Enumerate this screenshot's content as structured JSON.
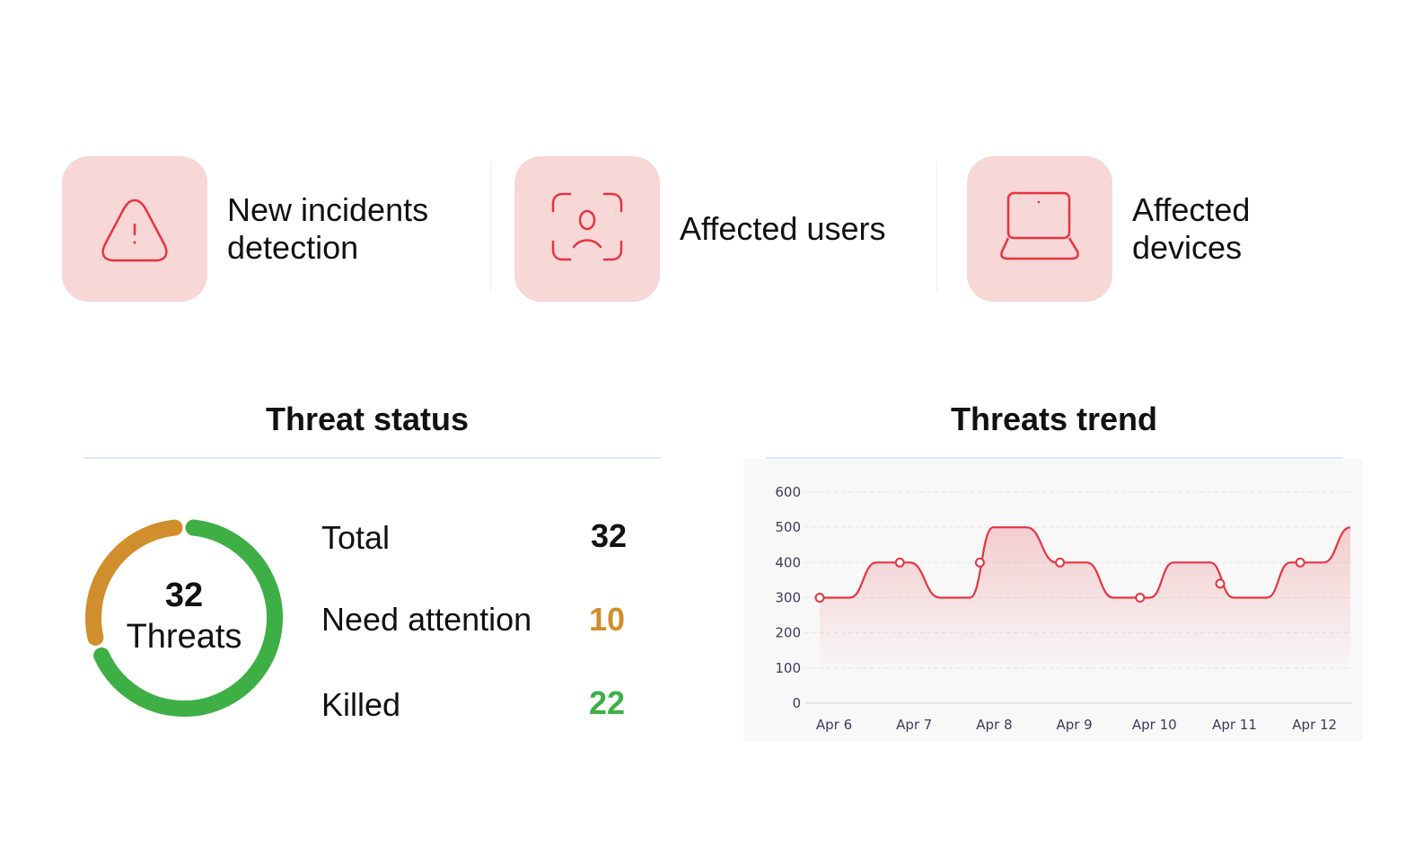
{
  "cards": [
    {
      "label": "New incidents detection",
      "icon": "warning-triangle-icon"
    },
    {
      "label": "Affected users",
      "icon": "user-scan-icon"
    },
    {
      "label": "Affected devices",
      "icon": "laptop-icon"
    }
  ],
  "colors": {
    "accent": "#e5343f",
    "tile": "#f8d7d7",
    "attention": "#d08f2c",
    "killed": "#3daf45"
  },
  "threat_status": {
    "title": "Threat status",
    "donut": {
      "count": "32",
      "label": "Threats"
    },
    "rows": [
      {
        "label": "Total",
        "value": "32"
      },
      {
        "label": "Need attention",
        "value": "10"
      },
      {
        "label": "Killed",
        "value": "22"
      }
    ]
  },
  "threats_trend": {
    "title": "Threats trend"
  },
  "chart_data": {
    "type": "line",
    "title": "Threats trend",
    "categories": [
      "Apr 6",
      "Apr 7",
      "Apr 8",
      "Apr 9",
      "Apr 10",
      "Apr 11",
      "Apr 12"
    ],
    "marker_values": [
      300,
      400,
      400,
      400,
      300,
      340,
      400
    ],
    "trace": [
      [
        "Apr 6 00:00",
        300
      ],
      [
        "Apr 6 09:00",
        300
      ],
      [
        "Apr 6 17:00",
        400
      ],
      [
        "Apr 7 03:00",
        400
      ],
      [
        "Apr 7 12:00",
        300
      ],
      [
        "Apr 7 21:00",
        300
      ],
      [
        "Apr 8 04:00",
        500
      ],
      [
        "Apr 8 14:00",
        500
      ],
      [
        "Apr 8 23:00",
        400
      ],
      [
        "Apr 9 08:00",
        400
      ],
      [
        "Apr 9 16:00",
        300
      ],
      [
        "Apr 10 03:00",
        300
      ],
      [
        "Apr 10 10:00",
        400
      ],
      [
        "Apr 10 21:00",
        400
      ],
      [
        "Apr 11 04:00",
        300
      ],
      [
        "Apr 11 14:00",
        300
      ],
      [
        "Apr 11 21:00",
        400
      ],
      [
        "Apr 12 07:00",
        400
      ],
      [
        "Apr 12 15:00",
        500
      ]
    ],
    "yticks": [
      0,
      100,
      200,
      300,
      400,
      500,
      600
    ],
    "ylim": [
      0,
      600
    ],
    "grid": true,
    "line_color": "#e5343f"
  }
}
